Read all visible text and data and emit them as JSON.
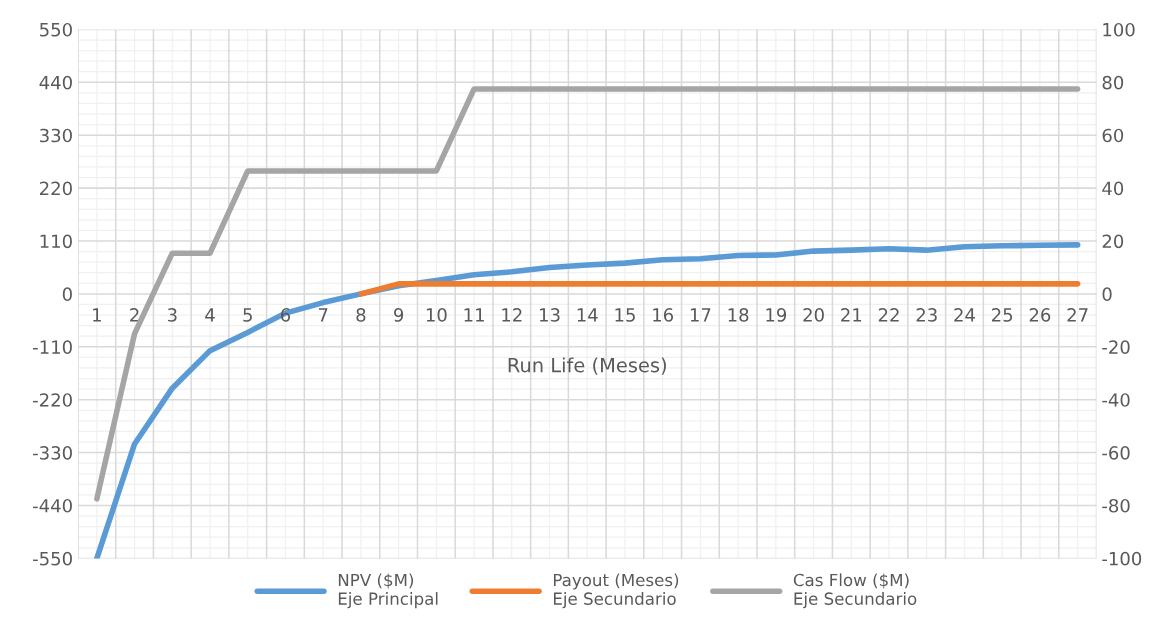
{
  "chart_data": {
    "type": "line",
    "xlabel": "Run Life (Meses)",
    "categories": [
      "1",
      "2",
      "3",
      "4",
      "5",
      "6",
      "7",
      "8",
      "9",
      "10",
      "11",
      "12",
      "13",
      "14",
      "15",
      "16",
      "17",
      "18",
      "19",
      "20",
      "21",
      "22",
      "23",
      "24",
      "25",
      "26",
      "27"
    ],
    "series": [
      {
        "name": "NPV ($M)\nEje Principal",
        "color": "#5b9bd5",
        "values": [
          -550,
          -312,
          -196,
          -118,
          -80,
          -40,
          -18,
          0,
          17,
          28,
          40,
          46,
          55,
          60,
          64,
          71,
          73,
          80,
          81,
          89,
          91,
          94,
          91,
          98,
          100,
          101,
          102
        ]
      },
      {
        "name": "Payout (Meses)\nEje Secundario",
        "color": "#ed7d31",
        "axis": "y2",
        "values": [
          null,
          null,
          null,
          null,
          null,
          null,
          null,
          0,
          3.8,
          3.8,
          3.8,
          3.8,
          3.8,
          3.8,
          3.8,
          3.8,
          3.8,
          3.8,
          3.8,
          3.8,
          3.8,
          3.8,
          3.8,
          3.8,
          3.8,
          3.8,
          3.8
        ]
      },
      {
        "name": "Cas Flow ($M)\nEje Secundario",
        "color": "#a5a5a5",
        "axis": "y2",
        "values": [
          -77.5,
          -15,
          15.4,
          15.4,
          46.5,
          46.5,
          46.5,
          46.5,
          46.5,
          46.5,
          77.5,
          77.5,
          77.5,
          77.5,
          77.5,
          77.5,
          77.5,
          77.5,
          77.5,
          77.5,
          77.5,
          77.5,
          77.5,
          77.5,
          77.5,
          77.5,
          77.5
        ]
      }
    ],
    "ylim": [
      -550,
      550
    ],
    "yticks": [
      -550,
      -440,
      -330,
      -220,
      -110,
      0,
      110,
      220,
      330,
      440,
      550
    ],
    "y2lim": [
      -100,
      100
    ],
    "y2ticks": [
      -100,
      -80,
      -60,
      -40,
      -20,
      0,
      20,
      40,
      60,
      80,
      100
    ],
    "grid": true,
    "legend": "bottom",
    "marker": "none",
    "line_style": "solid"
  }
}
